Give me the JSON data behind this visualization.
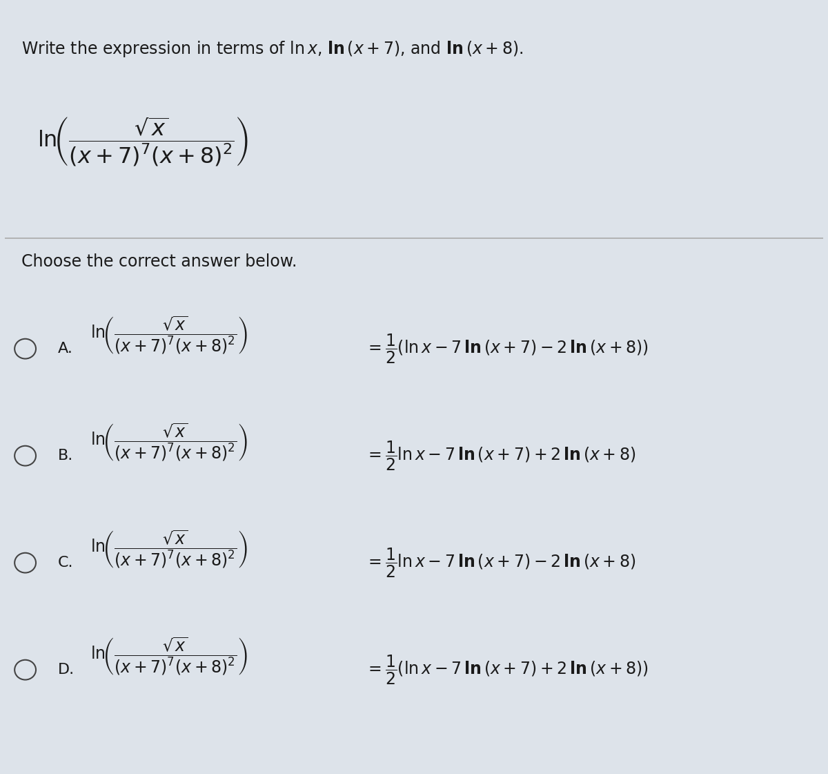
{
  "bg_color": "#dde3ea",
  "text_color": "#1a1a1a",
  "title": "Write the expression in terms of $\\ln x$, $\\mathbf{ln}\\,(x+7)$, and $\\mathbf{ln}\\,(x+8)$.",
  "main_expr": "$\\ln\\!\\left(\\dfrac{\\sqrt{x}}{(x+7)^7(x+8)^2}\\right)$",
  "instruction": "Choose the correct answer below.",
  "options": [
    {
      "label": "A.",
      "lhs": "$\\ln\\!\\left(\\dfrac{\\sqrt{x}}{(x+7)^7(x+8)^2}\\right)$",
      "rhs": "$= \\dfrac{1}{2}(\\ln x - 7\\,\\mathbf{ln}\\,(x+7) - 2\\,\\mathbf{ln}\\,(x+8))$",
      "has_parens_rhs": true
    },
    {
      "label": "B.",
      "lhs": "$\\ln\\!\\left(\\dfrac{\\sqrt{x}}{(x+7)^7(x+8)^2}\\right)$",
      "rhs": "$= \\dfrac{1}{2}\\ln x - 7\\,\\mathbf{ln}\\,(x+7) + 2\\,\\mathbf{ln}\\,(x+8)$",
      "has_parens_rhs": false
    },
    {
      "label": "C.",
      "lhs": "$\\ln\\!\\left(\\dfrac{\\sqrt{x}}{(x+7)^7(x+8)^2}\\right)$",
      "rhs": "$= \\dfrac{1}{2}\\ln x - 7\\,\\mathbf{ln}\\,(x+7) - 2\\,\\mathbf{ln}\\,(x+8)$",
      "has_parens_rhs": false
    },
    {
      "label": "D.",
      "lhs": "$\\ln\\!\\left(\\dfrac{\\sqrt{x}}{(x+7)^7(x+8)^2}\\right)$",
      "rhs": "$= \\dfrac{1}{2}(\\ln x - 7\\,\\mathbf{ln}\\,(x+7) + 2\\,\\mathbf{ln}\\,(x+8))$",
      "has_parens_rhs": true
    }
  ],
  "figsize": [
    12.0,
    11.21
  ],
  "dpi": 100
}
